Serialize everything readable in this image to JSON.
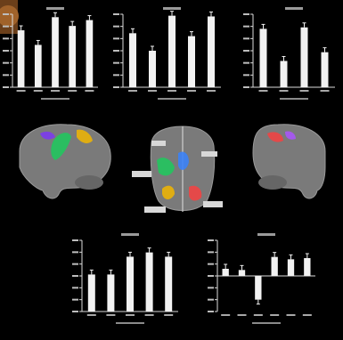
{
  "panels": [
    {
      "id": "p1",
      "title": "",
      "values": [
        0.78,
        0.58,
        0.96,
        0.84,
        0.92
      ]
    },
    {
      "id": "p2",
      "title": "",
      "values": [
        0.74,
        0.5,
        0.98,
        0.7,
        0.97
      ]
    },
    {
      "id": "p3",
      "title": "",
      "values": [
        0.8,
        0.36,
        0.82,
        0.48
      ]
    },
    {
      "id": "p4",
      "title": "",
      "values": [
        0.52,
        0.52,
        0.77,
        0.83,
        0.77
      ]
    },
    {
      "id": "p5",
      "title": "",
      "values": [
        0.12,
        0.1,
        -0.4,
        0.32,
        0.28,
        0.3
      ],
      "ylim": [
        -0.6,
        0.6
      ]
    }
  ],
  "regions": {
    "left_brain": [
      "#7c3aed",
      "#22c55e",
      "#eab308"
    ],
    "center_brain": [
      "#22c55e",
      "#3b82f6",
      "#eab308",
      "#ef4444"
    ],
    "right_brain": [
      "#ef4444",
      "#a855f7"
    ]
  }
}
